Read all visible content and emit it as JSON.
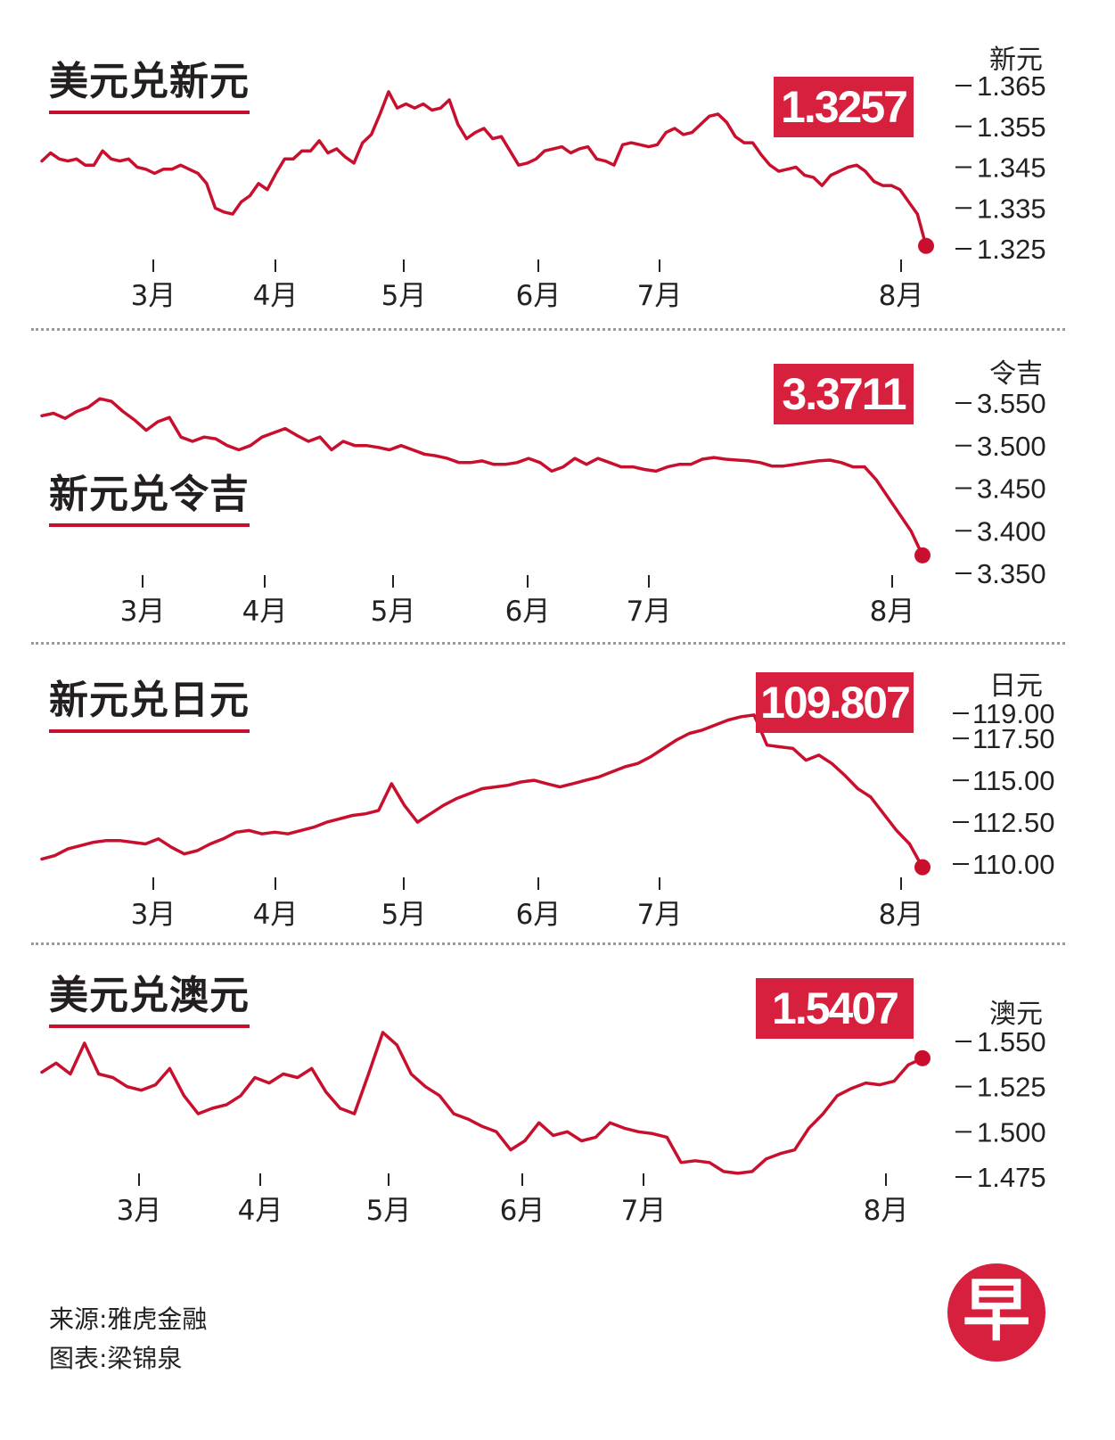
{
  "panels": [
    {
      "title": "美元兑新元",
      "value": "1.3257",
      "unit": "新元",
      "color": "#c8102e"
    },
    {
      "title": "新元兑令吉",
      "value": "3.3711",
      "unit": "令吉",
      "color": "#c8102e"
    },
    {
      "title": "新元兑日元",
      "value": "109.807",
      "unit": "日元",
      "color": "#c8102e"
    },
    {
      "title": "美元兑澳元",
      "value": "1.5407",
      "unit": "澳元",
      "color": "#c8102e"
    }
  ],
  "footer": {
    "source": "来源:雅虎金融",
    "chart_by": "图表:梁锦泉"
  },
  "logo": "早",
  "chart_data": [
    {
      "type": "line",
      "title": "美元兑新元",
      "ylabel": "新元",
      "ylim": [
        1.325,
        1.365
      ],
      "y_ticks": [
        "1.365",
        "1.355",
        "1.345",
        "1.335",
        "1.325"
      ],
      "x_ticks": [
        "3月",
        "4月",
        "5月",
        "6月",
        "7月",
        "8月"
      ],
      "last_value": 1.3257,
      "series": [
        {
          "values": [
            1.3465,
            1.3485,
            1.347,
            1.3465,
            1.347,
            1.3455,
            1.3455,
            1.349,
            1.347,
            1.3465,
            1.347,
            1.345,
            1.3445,
            1.3435,
            1.3445,
            1.3445,
            1.3455,
            1.3445,
            1.3435,
            1.341,
            1.335,
            1.334,
            1.3335,
            1.3365,
            1.338,
            1.341,
            1.3395,
            1.3435,
            1.347,
            1.347,
            1.349,
            1.349,
            1.3515,
            1.3485,
            1.3495,
            1.3475,
            1.346,
            1.351,
            1.353,
            1.358,
            1.3635,
            1.3595,
            1.3605,
            1.3595,
            1.3605,
            1.359,
            1.3595,
            1.3615,
            1.3555,
            1.352,
            1.3535,
            1.3545,
            1.352,
            1.3525,
            1.349,
            1.3455,
            1.346,
            1.347,
            1.349,
            1.3495,
            1.35,
            1.3485,
            1.3495,
            1.35,
            1.347,
            1.3465,
            1.3455,
            1.3505,
            1.351,
            1.3505,
            1.35,
            1.3505,
            1.3535,
            1.3545,
            1.353,
            1.3535,
            1.3555,
            1.3575,
            1.358,
            1.356,
            1.3525,
            1.351,
            1.351,
            1.348,
            1.3455,
            1.344,
            1.3445,
            1.345,
            1.343,
            1.3425,
            1.3405,
            1.343,
            1.344,
            1.345,
            1.3455,
            1.344,
            1.3415,
            1.3405,
            1.3405,
            1.3395,
            1.3365,
            1.3335,
            1.3257
          ]
        }
      ]
    },
    {
      "type": "line",
      "title": "新元兑令吉",
      "ylabel": "令吉",
      "ylim": [
        3.35,
        3.55
      ],
      "y_ticks": [
        "3.550",
        "3.500",
        "3.450",
        "3.400",
        "3.350"
      ],
      "x_ticks": [
        "3月",
        "4月",
        "5月",
        "6月",
        "7月",
        "8月"
      ],
      "last_value": 3.3711,
      "series": [
        {
          "values": [
            3.535,
            3.538,
            3.532,
            3.54,
            3.545,
            3.555,
            3.552,
            3.54,
            3.53,
            3.518,
            3.528,
            3.533,
            3.51,
            3.505,
            3.51,
            3.508,
            3.5,
            3.495,
            3.5,
            3.51,
            3.515,
            3.52,
            3.512,
            3.505,
            3.51,
            3.495,
            3.505,
            3.5,
            3.5,
            3.498,
            3.495,
            3.5,
            3.495,
            3.49,
            3.488,
            3.485,
            3.48,
            3.48,
            3.482,
            3.478,
            3.478,
            3.48,
            3.485,
            3.48,
            3.47,
            3.475,
            3.485,
            3.478,
            3.485,
            3.48,
            3.475,
            3.475,
            3.472,
            3.47,
            3.475,
            3.478,
            3.478,
            3.484,
            3.486,
            3.484,
            3.483,
            3.482,
            3.48,
            3.476,
            3.476,
            3.478,
            3.48,
            3.482,
            3.483,
            3.48,
            3.475,
            3.475,
            3.46,
            3.44,
            3.42,
            3.4,
            3.3711
          ]
        }
      ]
    },
    {
      "type": "line",
      "title": "新元兑日元",
      "ylabel": "日元",
      "ylim": [
        110.0,
        119.0
      ],
      "y_ticks": [
        "119.00",
        "117.50",
        "115.00",
        "112.50",
        "110.00"
      ],
      "x_ticks": [
        "3月",
        "4月",
        "5月",
        "6月",
        "7月",
        "8月"
      ],
      "last_value": 109.807,
      "series": [
        {
          "values": [
            110.3,
            110.5,
            110.9,
            111.1,
            111.3,
            111.4,
            111.4,
            111.3,
            111.2,
            111.5,
            111.0,
            110.6,
            110.8,
            111.2,
            111.5,
            111.9,
            112.0,
            111.8,
            111.9,
            111.8,
            112.0,
            112.2,
            112.5,
            112.7,
            112.9,
            113.0,
            113.2,
            114.8,
            113.5,
            112.5,
            113.0,
            113.5,
            113.9,
            114.2,
            114.5,
            114.6,
            114.7,
            114.9,
            115.0,
            114.8,
            114.6,
            114.8,
            115.0,
            115.2,
            115.5,
            115.8,
            116.0,
            116.4,
            116.9,
            117.4,
            117.8,
            118.0,
            118.3,
            118.6,
            118.8,
            118.9,
            117.1,
            117.0,
            116.9,
            116.2,
            116.5,
            116.0,
            115.3,
            114.5,
            114.0,
            113.0,
            112.0,
            111.2,
            109.807
          ]
        }
      ]
    },
    {
      "type": "line",
      "title": "美元兑澳元",
      "ylabel": "澳元",
      "ylim": [
        1.475,
        1.55
      ],
      "y_ticks": [
        "1.550",
        "1.525",
        "1.500",
        "1.475"
      ],
      "x_ticks": [
        "3月",
        "4月",
        "5月",
        "6月",
        "7月",
        "8月"
      ],
      "last_value": 1.5407,
      "series": [
        {
          "values": [
            1.533,
            1.538,
            1.532,
            1.549,
            1.532,
            1.53,
            1.525,
            1.523,
            1.526,
            1.535,
            1.52,
            1.51,
            1.513,
            1.515,
            1.52,
            1.53,
            1.527,
            1.532,
            1.53,
            1.535,
            1.522,
            1.513,
            1.51,
            1.532,
            1.555,
            1.548,
            1.532,
            1.525,
            1.52,
            1.51,
            1.507,
            1.503,
            1.5,
            1.49,
            1.495,
            1.505,
            1.498,
            1.5,
            1.495,
            1.497,
            1.505,
            1.502,
            1.5,
            1.499,
            1.497,
            1.483,
            1.484,
            1.483,
            1.478,
            1.477,
            1.478,
            1.485,
            1.488,
            1.49,
            1.502,
            1.51,
            1.52,
            1.524,
            1.527,
            1.526,
            1.528,
            1.537,
            1.5407
          ]
        }
      ]
    }
  ]
}
